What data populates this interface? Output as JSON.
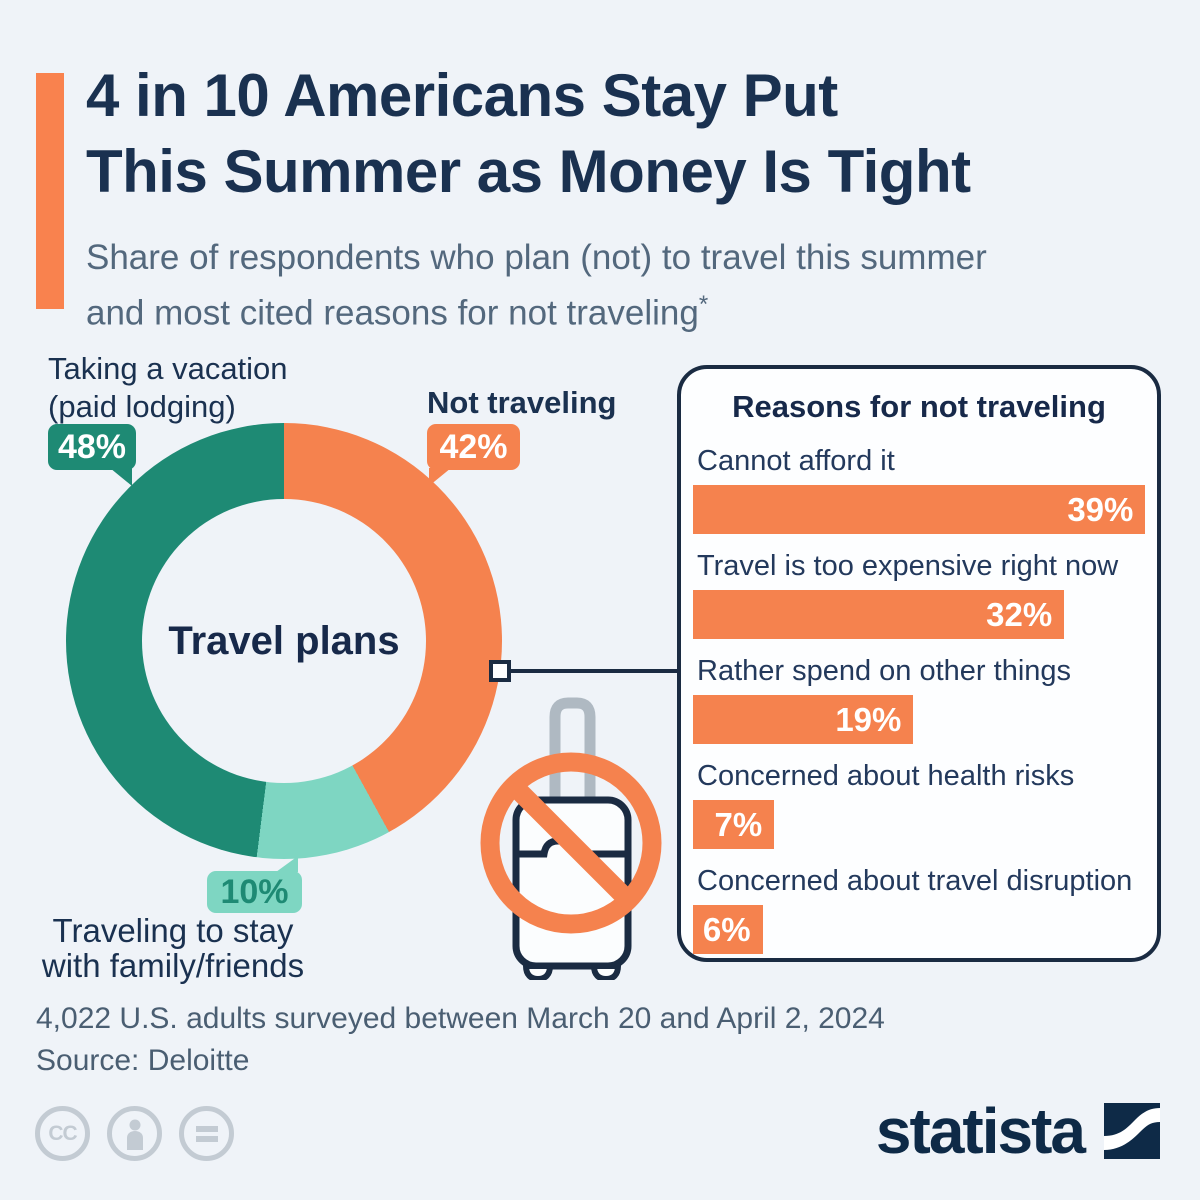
{
  "colors": {
    "background": "#EFF3F8",
    "navy": "#1A3150",
    "panel_border_navy": "#1A2B42",
    "subtitle_gray": "#53687D",
    "footer_gray": "#4A5E72",
    "orange": "#F5824E",
    "teal": "#1E8A74",
    "mint": "#7ED6C2",
    "handle_gray": "#AFB9C2",
    "license_gray": "#C3CBD3",
    "logo_navy": "#0E2A47"
  },
  "header": {
    "title_line1": "4 in 10 Americans Stay Put",
    "title_line2": "This Summer as Money Is Tight",
    "subtitle_line1": "Share of respondents who plan (not) to travel this summer",
    "subtitle_line2": "and most cited reasons for not traveling",
    "subtitle_footnote_marker": "*"
  },
  "donut": {
    "center_label": "Travel plans",
    "callout_vacation": {
      "label_line1": "Taking a vacation",
      "label_line2": "(paid lodging)",
      "value_label": "48%"
    },
    "callout_not_traveling": {
      "label": "Not traveling",
      "value_label": "42%"
    },
    "callout_family": {
      "value_label": "10%",
      "label_line1": "Traveling to stay",
      "label_line2": "with family/friends"
    }
  },
  "reasons": {
    "title": "Reasons for not traveling",
    "items": [
      {
        "label": "Cannot afford it",
        "value": 39,
        "value_label": "39%"
      },
      {
        "label": "Travel is too expensive right now",
        "value": 32,
        "value_label": "32%"
      },
      {
        "label": "Rather spend on other things",
        "value": 19,
        "value_label": "19%"
      },
      {
        "label": "Concerned about health risks",
        "value": 7,
        "value_label": "7%"
      },
      {
        "label": "Concerned about travel disruption",
        "value": 6,
        "value_label": "6%"
      }
    ]
  },
  "footer": {
    "survey_note": "4,022 U.S. adults surveyed between March 20 and April 2, 2024",
    "source": "Source: Deloitte"
  },
  "branding": {
    "logo_text": "statista",
    "license_cc": "CC"
  },
  "chart_data": [
    {
      "type": "pie",
      "title": "Travel plans",
      "labels": [
        "Not traveling",
        "Traveling to stay with family/friends",
        "Taking a vacation (paid lodging)"
      ],
      "values": [
        42,
        10,
        48
      ],
      "colors": [
        "#F5824E",
        "#7ED6C2",
        "#1E8A74"
      ],
      "donut": true,
      "start_angle_deg": 0,
      "direction": "clockwise"
    },
    {
      "type": "bar",
      "title": "Reasons for not traveling",
      "orientation": "horizontal",
      "categories": [
        "Cannot afford it",
        "Travel is too expensive right now",
        "Rather spend on other things",
        "Concerned about health risks",
        "Concerned about travel disruption"
      ],
      "values": [
        39,
        32,
        19,
        7,
        6
      ],
      "unit": "%",
      "bar_color": "#F5824E",
      "xlim": [
        0,
        39
      ],
      "value_labels_inside": true
    }
  ]
}
